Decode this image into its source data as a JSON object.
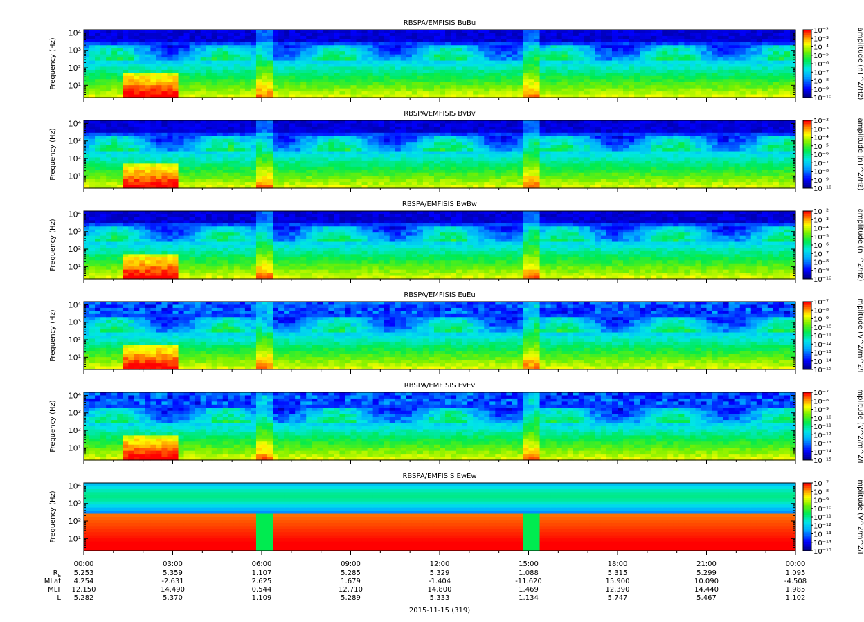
{
  "chart_data": [
    {
      "type": "heatmap",
      "title": "RBSPA/EMFISIS  BuBu",
      "ylabel": "Frequency (Hz)",
      "ylim": [
        2,
        15000
      ],
      "yscale": "log",
      "ytick_labels": [
        "10¹",
        "10²",
        "10³",
        "10⁴"
      ],
      "colorbar": {
        "label": "amplitude (nT^2/Hz)",
        "range": [
          -10,
          -2
        ],
        "tick_labels": [
          "10⁻²",
          "10⁻³",
          "10⁻⁴",
          "10⁻⁵",
          "10⁻⁶",
          "10⁻⁷",
          "10⁻⁸",
          "10⁻⁹",
          "10⁻¹⁰"
        ]
      },
      "colors": {
        "low": "#0000cc",
        "high": "#ff0000"
      }
    },
    {
      "type": "heatmap",
      "title": "RBSPA/EMFISIS  BvBv",
      "ylabel": "Frequency (Hz)",
      "ylim": [
        2,
        15000
      ],
      "yscale": "log",
      "ytick_labels": [
        "10¹",
        "10²",
        "10³",
        "10⁴"
      ],
      "colorbar": {
        "label": "amplitude (nT^2/Hz)",
        "range": [
          -10,
          -2
        ],
        "tick_labels": [
          "10⁻²",
          "10⁻³",
          "10⁻⁴",
          "10⁻⁵",
          "10⁻⁶",
          "10⁻⁷",
          "10⁻⁸",
          "10⁻⁹",
          "10⁻¹⁰"
        ]
      }
    },
    {
      "type": "heatmap",
      "title": "RBSPA/EMFISIS  BwBw",
      "ylabel": "Frequency (Hz)",
      "ylim": [
        2,
        15000
      ],
      "yscale": "log",
      "ytick_labels": [
        "10¹",
        "10²",
        "10³",
        "10⁴"
      ],
      "colorbar": {
        "label": "amplitude (nT^2/Hz)",
        "range": [
          -10,
          -2
        ],
        "tick_labels": [
          "10⁻²",
          "10⁻³",
          "10⁻⁴",
          "10⁻⁵",
          "10⁻⁶",
          "10⁻⁷",
          "10⁻⁸",
          "10⁻⁹",
          "10⁻¹⁰"
        ]
      }
    },
    {
      "type": "heatmap",
      "title": "RBSPA/EMFISIS  EuEu",
      "ylabel": "Frequency (Hz)",
      "ylim": [
        2,
        15000
      ],
      "yscale": "log",
      "ytick_labels": [
        "10¹",
        "10²",
        "10³",
        "10⁴"
      ],
      "colorbar": {
        "label": "mplitude (V^2/m^2/I",
        "range": [
          -15,
          -7
        ],
        "tick_labels": [
          "10⁻⁷",
          "10⁻⁸",
          "10⁻⁹",
          "10⁻¹⁰",
          "10⁻¹¹",
          "10⁻¹²",
          "10⁻¹³",
          "10⁻¹⁴",
          "10⁻¹⁵"
        ]
      }
    },
    {
      "type": "heatmap",
      "title": "RBSPA/EMFISIS  EvEv",
      "ylabel": "Frequency (Hz)",
      "ylim": [
        2,
        15000
      ],
      "yscale": "log",
      "ytick_labels": [
        "10¹",
        "10²",
        "10³",
        "10⁴"
      ],
      "colorbar": {
        "label": "mplitude (V^2/m^2/I",
        "range": [
          -15,
          -7
        ],
        "tick_labels": [
          "10⁻⁷",
          "10⁻⁸",
          "10⁻⁹",
          "10⁻¹⁰",
          "10⁻¹¹",
          "10⁻¹²",
          "10⁻¹³",
          "10⁻¹⁴",
          "10⁻¹⁵"
        ]
      }
    },
    {
      "type": "heatmap",
      "title": "RBSPA/EMFISIS  EwEw",
      "ylabel": "Frequency (Hz)",
      "ylim": [
        2,
        15000
      ],
      "yscale": "log",
      "ytick_labels": [
        "10¹",
        "10²",
        "10³",
        "10⁴"
      ],
      "colorbar": {
        "label": "mplitude (V^2/m^2/I",
        "range": [
          -15,
          -7
        ],
        "tick_labels": [
          "10⁻⁷",
          "10⁻⁸",
          "10⁻⁹",
          "10⁻¹⁰",
          "10⁻¹¹",
          "10⁻¹²",
          "10⁻¹³",
          "10⁻¹⁴",
          "10⁻¹⁵"
        ]
      }
    }
  ],
  "xaxis": {
    "time_labels": [
      "00:00",
      "03:00",
      "06:00",
      "09:00",
      "12:00",
      "15:00",
      "18:00",
      "21:00",
      "00:00"
    ],
    "ephemeris_rows": [
      {
        "label": "R",
        "subscript": "E",
        "values": [
          "5.253",
          "5.359",
          "1.107",
          "5.285",
          "5.329",
          "1.088",
          "5.315",
          "5.299",
          "1.095"
        ]
      },
      {
        "label": "MLat",
        "values": [
          "4.254",
          "-2.631",
          "2.625",
          "1.679",
          "-1.404",
          "-11.620",
          "15.900",
          "10.090",
          "-4.508"
        ]
      },
      {
        "label": "MLT",
        "values": [
          "12.150",
          "14.490",
          "0.544",
          "12.710",
          "14.800",
          "1.469",
          "12.390",
          "14.440",
          "1.985"
        ]
      },
      {
        "label": "L",
        "values": [
          "5.282",
          "5.370",
          "1.109",
          "5.289",
          "5.333",
          "1.134",
          "5.747",
          "5.467",
          "1.102"
        ]
      }
    ],
    "date": "2015-11-15 (319)"
  }
}
